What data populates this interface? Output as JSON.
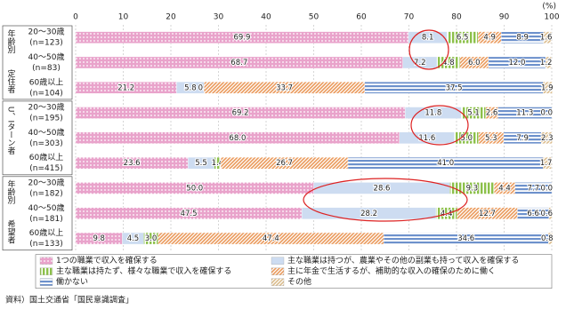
{
  "chart_data": {
    "type": "stacked-bar-horizontal",
    "x_unit": "(%)",
    "xlim": [
      0,
      100
    ],
    "xticks": [
      0,
      10,
      20,
      30,
      40,
      50,
      60,
      70,
      80,
      90,
      100
    ],
    "groups": [
      {
        "label": "定住者",
        "sub_label": "年齢別"
      },
      {
        "label": "U、Iターン者"
      },
      {
        "label": "希望者",
        "sub_label": "年齢別"
      }
    ],
    "categories": [
      "20～30歳",
      "40～50歳",
      "60歳以上",
      "20～30歳",
      "40～50歳",
      "60歳以上",
      "20～30歳",
      "40～50歳",
      "60歳以上"
    ],
    "n_labels": [
      "(n=123)",
      "(n=83)",
      "(n=104)",
      "(n=195)",
      "(n=303)",
      "(n=415)",
      "(n=182)",
      "(n=181)",
      "(n=133)"
    ],
    "series": [
      {
        "name": "1つの職業で収入を確保する",
        "color": "#e9a3cb",
        "pattern": "dots",
        "values": [
          69.9,
          68.7,
          21.2,
          69.2,
          68.0,
          23.6,
          50.0,
          47.5,
          9.8
        ],
        "value_labels": [
          "69.9",
          "68.7",
          "21.2",
          "69.2",
          "68.0",
          "23.6",
          "50.0",
          "47.5",
          "9.8"
        ]
      },
      {
        "name": "主な職業は持つが、農業やその他の副業も持って収入を確保する",
        "color": "#cddcf1",
        "pattern": "solid",
        "values": [
          8.1,
          7.2,
          5.8,
          11.8,
          11.6,
          5.5,
          28.6,
          28.2,
          4.5
        ],
        "value_labels": [
          "8.1",
          "7.2",
          "5.8",
          "11.8",
          "11.6",
          "5.5",
          "28.6",
          "28.2",
          "4.5"
        ]
      },
      {
        "name": "主な職業は持たず、様々な職業で収入を確保する",
        "color": "#8cc04a",
        "pattern": "vstripes",
        "values": [
          6.5,
          4.8,
          0.0,
          5.1,
          5.0,
          1.4,
          9.3,
          4.4,
          3.0
        ],
        "value_labels": [
          "6.5",
          "4.8",
          "0.0",
          "5.1",
          "5.0",
          "1.4",
          "9.3",
          "4.4",
          "3.0"
        ]
      },
      {
        "name": "主に年金で生活するが、補助的な収入の確保のために働く",
        "color": "#ea9a5c",
        "pattern": "diag",
        "values": [
          4.9,
          6.0,
          33.7,
          2.6,
          5.3,
          26.7,
          4.4,
          12.7,
          47.4
        ],
        "value_labels": [
          "4.9",
          "6.0",
          "33.7",
          "2.6",
          "5.3",
          "26.7",
          "4.4",
          "12.7",
          "47.4"
        ]
      },
      {
        "name": "働かない",
        "color": "#6d91cc",
        "pattern": "hstripes",
        "values": [
          8.9,
          12.0,
          37.5,
          11.3,
          7.9,
          41.0,
          7.7,
          6.6,
          34.6
        ],
        "value_labels": [
          "8.9",
          "12.0",
          "37.5",
          "11.3",
          "7.9",
          "41.0",
          "7.7",
          "6.6",
          "34.6"
        ]
      },
      {
        "name": "その他",
        "color": "#dbbc8c",
        "pattern": "diag",
        "values": [
          1.6,
          1.2,
          1.9,
          0.0,
          2.3,
          1.7,
          0.0,
          0.6,
          0.8
        ],
        "value_labels": [
          "1.6",
          "1.2",
          "1.9",
          "0.0",
          "2.3",
          "1.7",
          "0.0",
          "0.6",
          "0.8"
        ]
      }
    ],
    "source": "資料）国土交通省「国民意識調査」"
  }
}
